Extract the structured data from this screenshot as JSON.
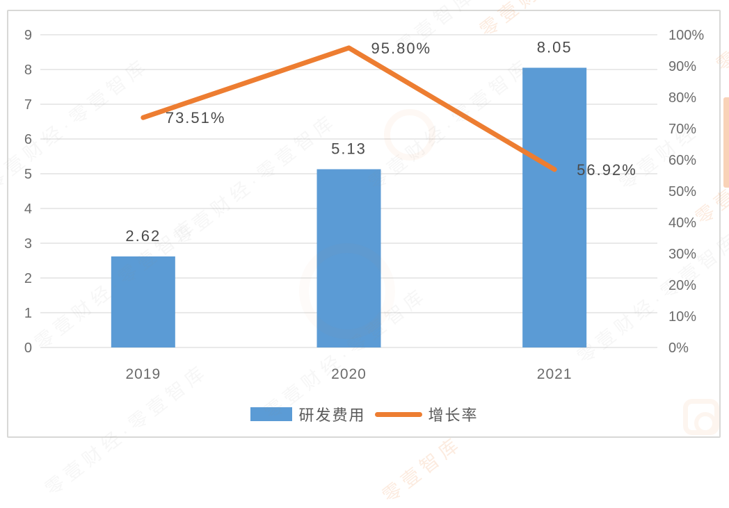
{
  "chart_data": {
    "type": "bar+line combo",
    "categories": [
      "2019",
      "2020",
      "2021"
    ],
    "series": [
      {
        "name": "研发费用",
        "type": "bar",
        "axis": "left",
        "values": [
          2.62,
          5.13,
          8.05
        ],
        "labels": [
          "2.62",
          "5.13",
          "8.05"
        ],
        "color": "#5B9BD5"
      },
      {
        "name": "增长率",
        "type": "line",
        "axis": "right",
        "values": [
          73.51,
          95.8,
          56.92
        ],
        "labels": [
          "73.51%",
          "95.80%",
          "56.92%"
        ],
        "color": "#ED7D31"
      }
    ],
    "left_axis": {
      "min": 0,
      "max": 9,
      "step": 1,
      "ticks": [
        "0",
        "1",
        "2",
        "3",
        "4",
        "5",
        "6",
        "7",
        "8",
        "9"
      ]
    },
    "right_axis": {
      "min": 0,
      "max": 100,
      "step": 10,
      "ticks": [
        "0%",
        "10%",
        "20%",
        "30%",
        "40%",
        "50%",
        "60%",
        "70%",
        "80%",
        "90%",
        "100%"
      ]
    },
    "title": "",
    "xlabel": "",
    "ylabel": "",
    "grid": true,
    "legend_position": "bottom",
    "gridline_color": "#dcdcdc",
    "tick_label_color": "#6b6b6b",
    "data_label_color": "#4a4a4a"
  },
  "legend": {
    "items": [
      {
        "label": "研发费用",
        "swatch": "bar",
        "color": "#5B9BD5"
      },
      {
        "label": "增长率",
        "swatch": "line",
        "color": "#ED7D31"
      }
    ]
  },
  "watermark": {
    "full_text": "零壹财经·零壹智库",
    "brand": "零壹财经",
    "institute": "零壹智库",
    "color": "#ED7D31"
  }
}
